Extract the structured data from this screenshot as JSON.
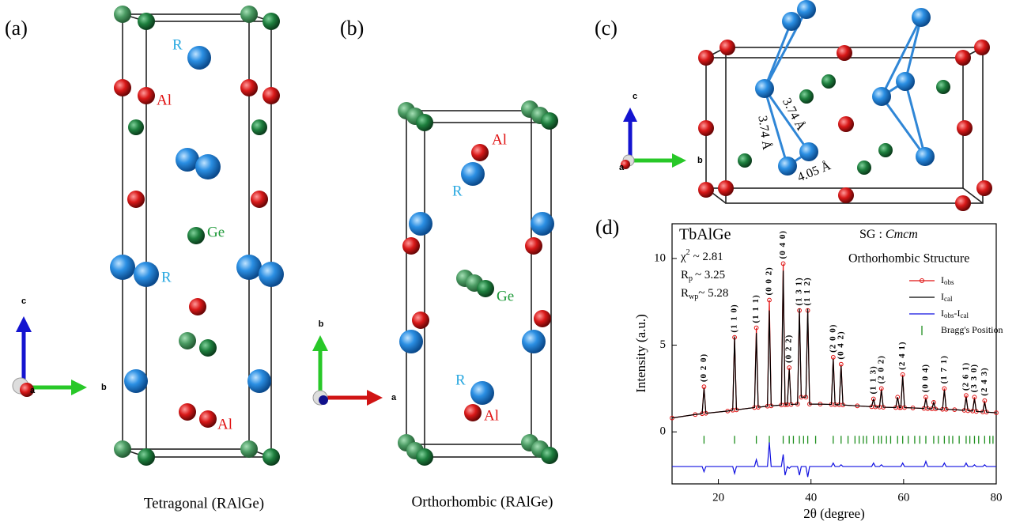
{
  "panels": [
    {
      "label": "(a)",
      "caption": "Tetragonal (RAlGe)",
      "atom_labels": [
        "R",
        "Al",
        "Ge",
        "R",
        "Al"
      ],
      "axes": [
        "c",
        "b",
        "a"
      ]
    },
    {
      "label": "(b)",
      "caption": "Orthorhombic (RAlGe)",
      "atom_labels": [
        "Al",
        "R",
        "Ge",
        "R",
        "Al"
      ],
      "axes": [
        "b",
        "a"
      ]
    },
    {
      "label": "(c)",
      "distances": [
        "3.74 Å",
        "3.74 Å",
        "4.05 Å"
      ],
      "axes": [
        "c",
        "b",
        "a"
      ]
    }
  ],
  "chart_data": {
    "type": "line",
    "label": "(d)",
    "compound": "TbAlGe",
    "fit_stats": [
      {
        "symbol": "χ",
        "sup": "2",
        "text": "~ 2.81"
      },
      {
        "symbol": "R",
        "sub": "p",
        "text": "~ 3.25"
      },
      {
        "symbol": "R",
        "sub": "wp",
        "text": "~ 5.28"
      }
    ],
    "space_group_prefix": "SG : ",
    "space_group": "Cmcm",
    "structure": "Orthorhombic Structure",
    "xlabel": "2θ (degree)",
    "ylabel": "Intensity (a.u.)",
    "xlim": [
      10,
      80
    ],
    "xticks": [
      20,
      40,
      60,
      80
    ],
    "ylim": [
      -3,
      12
    ],
    "yticks": [
      0,
      5,
      10
    ],
    "x": [
      10,
      15,
      16.5,
      16.9,
      17.3,
      22,
      23.1,
      23.5,
      23.9,
      27.8,
      28.2,
      28.6,
      30.6,
      31,
      31.4,
      33.6,
      34,
      34.4,
      34.9,
      35.3,
      35.7,
      37.1,
      37.5,
      37.9,
      38.9,
      39.3,
      39.7,
      42,
      44.4,
      44.8,
      45.2,
      46.1,
      46.5,
      46.9,
      50,
      53.1,
      53.5,
      53.9,
      54.8,
      55.2,
      55.6,
      58.3,
      58.7,
      59.1,
      59.4,
      59.8,
      60.2,
      62,
      64.4,
      64.8,
      65.2,
      66.1,
      66.5,
      66.9,
      68.4,
      68.8,
      69.2,
      71,
      73.1,
      73.5,
      73.9,
      74.9,
      75.3,
      75.7,
      77.1,
      77.5,
      77.9,
      80
    ],
    "series": [
      {
        "name": "I",
        "name_sub": "obs",
        "color": "#e01010",
        "marker": true,
        "values": [
          0.8,
          1.0,
          1.05,
          2.6,
          1.07,
          1.2,
          1.25,
          5.45,
          1.27,
          1.4,
          6.0,
          1.42,
          1.48,
          7.6,
          1.5,
          1.55,
          9.7,
          1.56,
          1.57,
          3.7,
          1.58,
          1.6,
          7.0,
          2.0,
          2.0,
          7.0,
          1.6,
          1.6,
          1.58,
          4.3,
          1.57,
          1.56,
          3.9,
          1.55,
          1.5,
          1.45,
          1.9,
          1.44,
          1.43,
          2.5,
          1.42,
          1.4,
          2.0,
          1.4,
          1.4,
          3.3,
          1.4,
          1.38,
          1.35,
          2.0,
          1.34,
          1.33,
          1.7,
          1.32,
          1.3,
          2.5,
          1.3,
          1.28,
          1.24,
          2.1,
          1.22,
          1.2,
          2.0,
          1.18,
          1.15,
          1.8,
          1.14,
          1.1
        ]
      },
      {
        "name": "I",
        "name_sub": "cal",
        "color": "#000000",
        "marker": false,
        "values": [
          0.8,
          1.0,
          1.05,
          2.5,
          1.07,
          1.2,
          1.25,
          5.5,
          1.27,
          1.4,
          5.7,
          1.42,
          1.48,
          7.0,
          1.5,
          1.55,
          9.3,
          1.56,
          1.57,
          3.6,
          1.58,
          1.6,
          7.1,
          2.0,
          2.0,
          7.1,
          1.6,
          1.6,
          1.58,
          4.2,
          1.57,
          1.56,
          3.8,
          1.55,
          1.5,
          1.45,
          1.9,
          1.44,
          1.43,
          2.4,
          1.42,
          1.4,
          2.0,
          1.4,
          1.4,
          3.2,
          1.4,
          1.38,
          1.35,
          1.9,
          1.34,
          1.33,
          1.7,
          1.32,
          1.3,
          2.4,
          1.3,
          1.28,
          1.24,
          2.0,
          1.22,
          1.2,
          1.9,
          1.18,
          1.15,
          1.7,
          1.14,
          1.1
        ]
      },
      {
        "name": "I",
        "name_sub": "obs",
        "name_rest": "-I",
        "name_sub2": "cal",
        "color": "#1010e0",
        "marker": false,
        "values": [
          -2,
          -2,
          -2,
          -2.3,
          -2,
          -2,
          -2,
          -2.4,
          -2,
          -2,
          -1.6,
          -2,
          -2,
          -0.6,
          -2,
          -2,
          -1.3,
          -2.5,
          -2,
          -2.1,
          -2,
          -2,
          -2.5,
          -2,
          -2,
          -2.6,
          -2,
          -2,
          -2,
          -1.8,
          -2,
          -2,
          -1.9,
          -2,
          -2,
          -2,
          -1.8,
          -2,
          -2,
          -1.9,
          -2,
          -2,
          -2,
          -2,
          -2,
          -1.8,
          -2,
          -2,
          -2,
          -1.7,
          -2,
          -2,
          -2,
          -2,
          -2,
          -1.8,
          -2,
          -2,
          -2,
          -1.8,
          -2,
          -2,
          -1.9,
          -2,
          -2,
          -1.9,
          -2,
          -2
        ]
      }
    ],
    "bragg": {
      "name": "Bragg's Position",
      "color": "#1f8f1f",
      "x": [
        16.9,
        23.5,
        28.2,
        31,
        34,
        35.3,
        36.2,
        37.5,
        38.4,
        39.3,
        41,
        44.8,
        46.5,
        48,
        49.5,
        50.4,
        51.3,
        52,
        53.5,
        54.6,
        55.2,
        56.3,
        57.2,
        58.7,
        59.8,
        61,
        62.4,
        63.5,
        64.8,
        66.5,
        67.5,
        68.8,
        69.8,
        70.6,
        72,
        73.5,
        74.3,
        75.3,
        76.2,
        77.5,
        78.6,
        79.3
      ]
    },
    "peak_labels": [
      {
        "text": "(0 2 0)",
        "x": 16.9,
        "y": 2.6
      },
      {
        "text": "(1 1 0)",
        "x": 23.5,
        "y": 5.45
      },
      {
        "text": "(1 1 1)",
        "x": 28.2,
        "y": 6.0
      },
      {
        "text": "(0 0 2)",
        "x": 31,
        "y": 7.6
      },
      {
        "text": "(0 4 0)",
        "x": 34,
        "y": 9.7
      },
      {
        "text": "(0 2 2)",
        "x": 35.3,
        "y": 3.7
      },
      {
        "text": "(1 3 1)",
        "x": 37.5,
        "y": 7.0
      },
      {
        "text": "(1 1 2)",
        "x": 39.3,
        "y": 7.0
      },
      {
        "text": "(2 0 0)",
        "x": 44.8,
        "y": 4.3
      },
      {
        "text": "(0 4 2)",
        "x": 46.5,
        "y": 3.9
      },
      {
        "text": "(1 1 3)",
        "x": 53.5,
        "y": 1.9
      },
      {
        "text": "(2 0 2)",
        "x": 55.2,
        "y": 2.5
      },
      {
        "text": "(2 4 1)",
        "x": 59.8,
        "y": 3.3
      },
      {
        "text": "(0 0 4)",
        "x": 64.8,
        "y": 2.0
      },
      {
        "text": "(1 7 1)",
        "x": 68.8,
        "y": 2.5
      },
      {
        "text": "(2 6 1)",
        "x": 73.5,
        "y": 2.1
      },
      {
        "text": "(3 3 0)",
        "x": 75.3,
        "y": 2.0
      },
      {
        "text": "(2 4 3)",
        "x": 77.5,
        "y": 1.8
      }
    ]
  }
}
